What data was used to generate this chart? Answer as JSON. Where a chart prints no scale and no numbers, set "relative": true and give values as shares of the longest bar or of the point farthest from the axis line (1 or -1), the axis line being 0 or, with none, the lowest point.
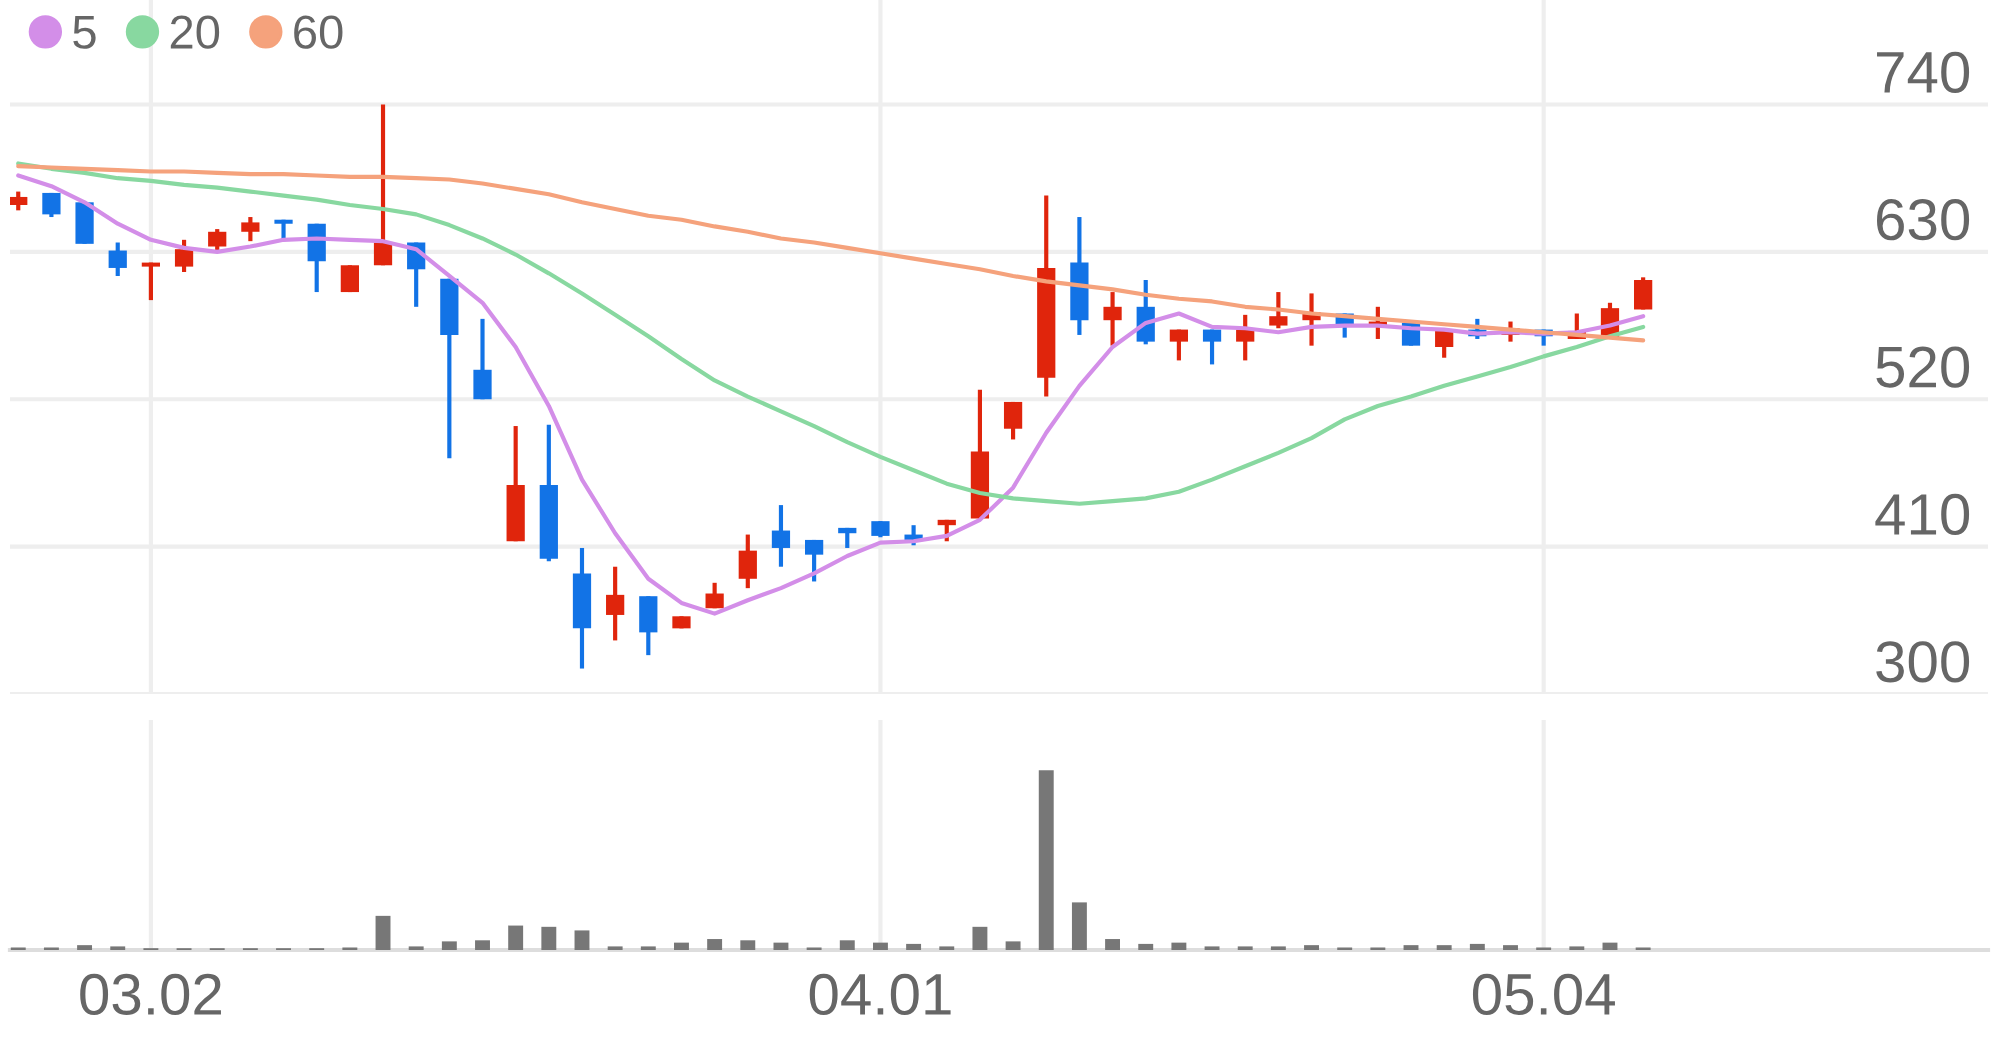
{
  "chart_data": [
    {
      "type": "candlestick",
      "categories": [
        null,
        null,
        null,
        null,
        "03.02",
        null,
        null,
        null,
        null,
        null,
        null,
        null,
        null,
        null,
        null,
        null,
        null,
        null,
        null,
        null,
        null,
        null,
        null,
        null,
        null,
        null,
        "04.01",
        null,
        null,
        null,
        null,
        null,
        null,
        null,
        null,
        null,
        null,
        null,
        null,
        null,
        null,
        null,
        null,
        null,
        null,
        null,
        "05.04",
        null,
        null,
        null
      ],
      "ohlc": [
        [
          665,
          675,
          661,
          671
        ],
        [
          674,
          674,
          656,
          658
        ],
        [
          667,
          667,
          636,
          636
        ],
        [
          631,
          637,
          612,
          618
        ],
        [
          619,
          622,
          594,
          622
        ],
        [
          619,
          639,
          615,
          632
        ],
        [
          634,
          647,
          631,
          645
        ],
        [
          645,
          656,
          638,
          652
        ],
        [
          654,
          654,
          639,
          651
        ],
        [
          651,
          651,
          600,
          623
        ],
        [
          600,
          620,
          600,
          620
        ],
        [
          620,
          740,
          620,
          637
        ],
        [
          637,
          637,
          589,
          617
        ],
        [
          610,
          610,
          476,
          568
        ],
        [
          542,
          580,
          520,
          520
        ],
        [
          414,
          500,
          414,
          456
        ],
        [
          456,
          501,
          399,
          401
        ],
        [
          390,
          409,
          319,
          349
        ],
        [
          359,
          395,
          340,
          374
        ],
        [
          373,
          373,
          329,
          346
        ],
        [
          349,
          358,
          349,
          358
        ],
        [
          364,
          383,
          364,
          375
        ],
        [
          386,
          419,
          379,
          407
        ],
        [
          422,
          441,
          395,
          409
        ],
        [
          415,
          415,
          384,
          404
        ],
        [
          424,
          424,
          409,
          420
        ],
        [
          429,
          429,
          417,
          418
        ],
        [
          419,
          426,
          411,
          415
        ],
        [
          426,
          430,
          414,
          430
        ],
        [
          431,
          527,
          431,
          481
        ],
        [
          498,
          518,
          490,
          518
        ],
        [
          536,
          672,
          522,
          618
        ],
        [
          622,
          656,
          568,
          579
        ],
        [
          579,
          600,
          560,
          589
        ],
        [
          589,
          609,
          561,
          563
        ],
        [
          563,
          572,
          549,
          572
        ],
        [
          572,
          572,
          546,
          563
        ],
        [
          563,
          583,
          549,
          572
        ],
        [
          575,
          600,
          573,
          582
        ],
        [
          579,
          599,
          560,
          585
        ],
        [
          584,
          584,
          566,
          575
        ],
        [
          574,
          589,
          565,
          578
        ],
        [
          577,
          577,
          560,
          560
        ],
        [
          559,
          571,
          551,
          571
        ],
        [
          572,
          580,
          565,
          567
        ],
        [
          568,
          578,
          563,
          573
        ],
        [
          572,
          572,
          560,
          567
        ],
        [
          565,
          584,
          565,
          571
        ],
        [
          566,
          592,
          566,
          588
        ],
        [
          587,
          611,
          587,
          609
        ]
      ],
      "colors": [
        "#e0250c",
        "#1273e6",
        "#1273e6",
        "#1273e6",
        "#e0250c",
        "#e0250c",
        "#e0250c",
        "#e0250c",
        "#1273e6",
        "#1273e6",
        "#e0250c",
        "#e0250c",
        "#1273e6",
        "#1273e6",
        "#1273e6",
        "#e0250c",
        "#1273e6",
        "#1273e6",
        "#e0250c",
        "#1273e6",
        "#e0250c",
        "#e0250c",
        "#e0250c",
        "#1273e6",
        "#1273e6",
        "#1273e6",
        "#1273e6",
        "#1273e6",
        "#e0250c",
        "#e0250c",
        "#e0250c",
        "#e0250c",
        "#1273e6",
        "#e0250c",
        "#1273e6",
        "#e0250c",
        "#1273e6",
        "#e0250c",
        "#e0250c",
        "#e0250c",
        "#1273e6",
        "#e0250c",
        "#1273e6",
        "#e0250c",
        "#1273e6",
        "#e0250c",
        "#1273e6",
        "#e0250c",
        "#e0250c",
        "#e0250c"
      ],
      "series": [
        {
          "type": "line",
          "name": "5",
          "color": "#d38ee8",
          "values": [
            687,
            679,
            667,
            651,
            639,
            633,
            630,
            634,
            639,
            640,
            639,
            638,
            632,
            612,
            592,
            559,
            515,
            460,
            420,
            386,
            368,
            360,
            370,
            379,
            390,
            403,
            413,
            414,
            418,
            430,
            454,
            495,
            530,
            559,
            577,
            584,
            574,
            573,
            570,
            574,
            575,
            575,
            573,
            572,
            569,
            570,
            569,
            570,
            575,
            582
          ]
        },
        {
          "type": "line",
          "name": "20",
          "color": "#88d8a0",
          "values": [
            696,
            692,
            689,
            685,
            683,
            680,
            678,
            675,
            672,
            669,
            665,
            662,
            658,
            650,
            640,
            628,
            614,
            599,
            583,
            567,
            550,
            534,
            522,
            511,
            500,
            488,
            477,
            467,
            457,
            450,
            446,
            444,
            442,
            444,
            446,
            451,
            460,
            470,
            480,
            491,
            505,
            515,
            522,
            530,
            537,
            544,
            552,
            559,
            567,
            574
          ]
        },
        {
          "type": "line",
          "name": "60",
          "color": "#f5a27c",
          "values": [
            694,
            693,
            692,
            691,
            690,
            690,
            689,
            688,
            688,
            687,
            686,
            686,
            685,
            684,
            681,
            677,
            673,
            667,
            662,
            657,
            654,
            649,
            645,
            640,
            637,
            633,
            629,
            625,
            621,
            617,
            612,
            608,
            605,
            602,
            598,
            595,
            593,
            589,
            587,
            584,
            582,
            580,
            578,
            576,
            574,
            572,
            570,
            568,
            566,
            564
          ]
        }
      ],
      "ylim": [
        300,
        818
      ],
      "yticks": [
        740,
        630,
        520,
        410,
        300
      ],
      "grid": true,
      "legend": "top left",
      "tick_labels": "y"
    },
    {
      "type": "bar",
      "categories": [
        null,
        null,
        null,
        null,
        "03.02",
        null,
        null,
        null,
        null,
        null,
        null,
        null,
        null,
        null,
        null,
        null,
        null,
        null,
        null,
        null,
        null,
        null,
        null,
        null,
        null,
        null,
        "04.01",
        null,
        null,
        null,
        null,
        null,
        null,
        null,
        null,
        null,
        null,
        null,
        null,
        null,
        null,
        null,
        null,
        null,
        null,
        null,
        "05.04",
        null,
        null,
        null
      ],
      "values": [
        0.014,
        0.014,
        0.027,
        0.02,
        0.01,
        0.01,
        0.01,
        0.01,
        0.01,
        0.01,
        0.014,
        0.19,
        0.02,
        0.048,
        0.054,
        0.136,
        0.129,
        0.109,
        0.02,
        0.02,
        0.041,
        0.061,
        0.054,
        0.041,
        0.014,
        0.054,
        0.041,
        0.034,
        0.02,
        0.129,
        0.048,
        1,
        0.265,
        0.061,
        0.034,
        0.041,
        0.02,
        0.02,
        0.02,
        0.027,
        0.014,
        0.014,
        0.027,
        0.027,
        0.034,
        0.027,
        0.014,
        0.02,
        0.041,
        0.014
      ],
      "color": "#777777",
      "relative": true,
      "grid": "x",
      "tick_labels": "x"
    }
  ]
}
